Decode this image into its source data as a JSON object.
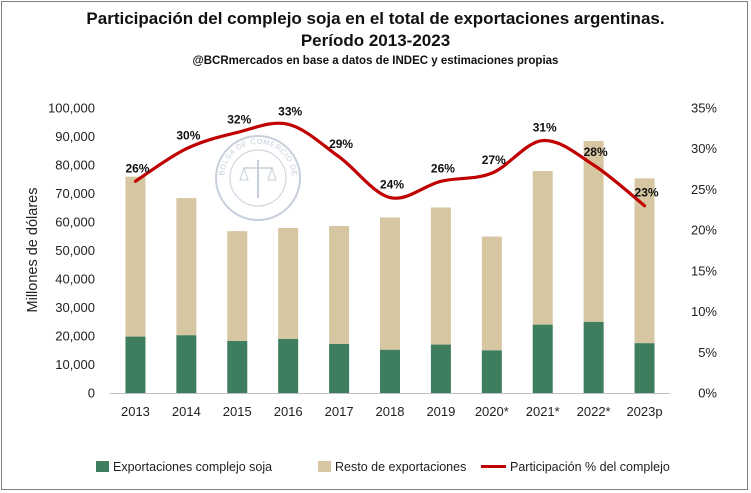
{
  "chart_data": {
    "type": "bar",
    "title": "Participación del complejo soja en el total de exportaciones argentinas.",
    "subtitle": "Período 2013-2023",
    "source": "@BCRmercados en base a datos de INDEC y estimaciones propias",
    "ylabel": "Millones de dólares",
    "watermark": "BOLSA DE COMERCIO DE ROSARIO",
    "categories": [
      "2013",
      "2014",
      "2015",
      "2016",
      "2017",
      "2018",
      "2019",
      "2020*",
      "2021*",
      "2022*",
      "2023p"
    ],
    "ylim": [
      0,
      100000
    ],
    "y_ticks": [
      "0",
      "10,000",
      "20,000",
      "30,000",
      "40,000",
      "50,000",
      "60,000",
      "70,000",
      "80,000",
      "90,000",
      "100,000"
    ],
    "y2lim": [
      0,
      35
    ],
    "y2_ticks": [
      "0%",
      "5%",
      "10%",
      "15%",
      "20%",
      "25%",
      "30%",
      "35%"
    ],
    "stacked": true,
    "series": [
      {
        "name": "Exportaciones complejo soja",
        "kind": "bar",
        "color": "#3e7d5e",
        "values": [
          19800,
          20300,
          18300,
          19000,
          17200,
          15200,
          17000,
          15000,
          24000,
          25000,
          17500
        ]
      },
      {
        "name": "Resto de exportaciones",
        "kind": "bar",
        "color": "#d6c6a2",
        "values": [
          56100,
          48100,
          38500,
          38900,
          41400,
          46400,
          48100,
          39900,
          53900,
          63400,
          57800
        ]
      },
      {
        "name": "Participación % del complejo",
        "kind": "line",
        "axis": "right",
        "color": "#c00000",
        "values": [
          26,
          30,
          32,
          33,
          29,
          24,
          26,
          27,
          31,
          28,
          23
        ]
      }
    ],
    "line_labels": [
      "26%",
      "30%",
      "32%",
      "33%",
      "29%",
      "24%",
      "26%",
      "27%",
      "31%",
      "28%",
      "23%"
    ],
    "legend_position": "bottom",
    "grid": false
  }
}
